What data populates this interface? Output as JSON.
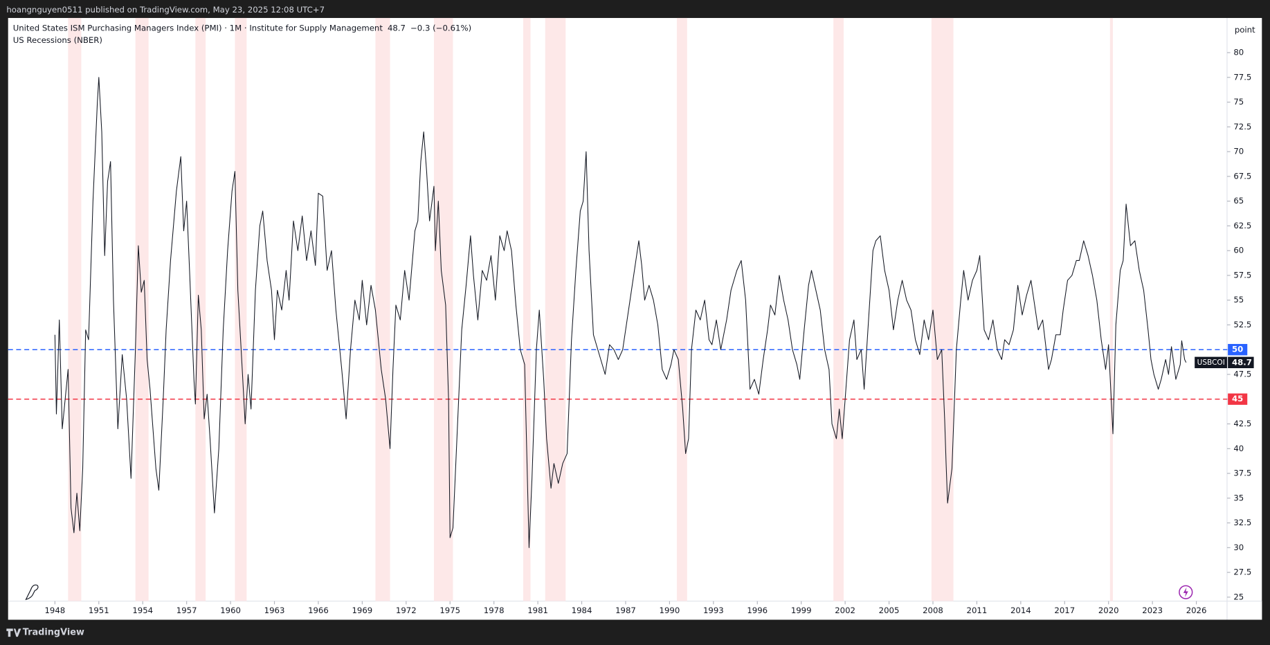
{
  "header": "hoangnguyen0511 published on TradingView.com, May 23, 2025 12:08 UTC+7",
  "footer": "TradingView",
  "chart_data": {
    "type": "line",
    "title": "United States ISM Purchasing Managers Index (PMI) · 1M · Institute for Supply Management",
    "last": {
      "value": 48.7,
      "change": "−0.3 (−0.61%)",
      "symbol": "USBCOI"
    },
    "recessions_label": "US Recessions (NBER)",
    "recessions": [
      [
        1948.9,
        1949.8
      ],
      [
        1953.5,
        1954.4
      ],
      [
        1957.6,
        1958.3
      ],
      [
        1960.3,
        1961.1
      ],
      [
        1969.9,
        1970.9
      ],
      [
        1973.9,
        1975.2
      ],
      [
        1980.0,
        1980.5
      ],
      [
        1981.5,
        1982.9
      ],
      [
        1990.5,
        1991.2
      ],
      [
        2001.2,
        2001.9
      ],
      [
        2007.9,
        2009.4
      ],
      [
        2020.1,
        2020.3
      ]
    ],
    "recession_color": "#fde8e8",
    "axis_unit": "point",
    "hlines": [
      {
        "value": 50,
        "color": "#2962ff"
      },
      {
        "value": 45,
        "color": "#f23645"
      }
    ],
    "xlim": [
      1944.8,
      2028.1
    ],
    "ylim": [
      24.6,
      83.5
    ],
    "xticks": [
      1948,
      1951,
      1954,
      1957,
      1960,
      1963,
      1966,
      1969,
      1972,
      1975,
      1978,
      1981,
      1984,
      1987,
      1990,
      1993,
      1996,
      1999,
      2002,
      2005,
      2008,
      2011,
      2014,
      2017,
      2020,
      2023,
      2026
    ],
    "yticks": [
      25,
      27.5,
      30,
      32.5,
      35,
      37.5,
      40,
      42.5,
      45,
      47.5,
      50,
      52.5,
      55,
      57.5,
      60,
      62.5,
      65,
      67.5,
      70,
      72.5,
      75,
      77.5,
      80
    ],
    "series": [
      {
        "name": "USBCOI",
        "color": "#131722",
        "x": [
          1948.0,
          1948.1,
          1948.3,
          1948.5,
          1948.9,
          1949.1,
          1949.3,
          1949.5,
          1949.7,
          1949.9,
          1950.1,
          1950.3,
          1950.6,
          1950.9,
          1951.0,
          1951.2,
          1951.4,
          1951.6,
          1951.8,
          1952.0,
          1952.3,
          1952.6,
          1952.9,
          1953.2,
          1953.5,
          1953.7,
          1953.9,
          1954.1,
          1954.3,
          1954.5,
          1954.9,
          1955.1,
          1955.4,
          1955.6,
          1955.9,
          1956.3,
          1956.6,
          1956.8,
          1957.0,
          1957.2,
          1957.5,
          1957.6,
          1957.8,
          1958.0,
          1958.2,
          1958.4,
          1958.6,
          1958.9,
          1959.2,
          1959.5,
          1959.8,
          1960.1,
          1960.3,
          1960.5,
          1960.8,
          1961.0,
          1961.2,
          1961.4,
          1961.7,
          1962.0,
          1962.2,
          1962.5,
          1962.8,
          1963.0,
          1963.2,
          1963.5,
          1963.8,
          1964.0,
          1964.3,
          1964.6,
          1964.9,
          1965.2,
          1965.5,
          1965.8,
          1966.0,
          1966.3,
          1966.6,
          1966.9,
          1967.2,
          1967.6,
          1967.9,
          1968.2,
          1968.5,
          1968.8,
          1969.0,
          1969.3,
          1969.6,
          1969.9,
          1970.3,
          1970.6,
          1970.9,
          1971.1,
          1971.3,
          1971.6,
          1971.9,
          1972.2,
          1972.6,
          1972.8,
          1973.0,
          1973.2,
          1973.4,
          1973.6,
          1973.9,
          1974.0,
          1974.2,
          1974.4,
          1974.7,
          1974.9,
          1975.0,
          1975.2,
          1975.5,
          1975.8,
          1976.1,
          1976.4,
          1976.6,
          1976.9,
          1977.2,
          1977.5,
          1977.8,
          1978.1,
          1978.4,
          1978.7,
          1978.9,
          1979.2,
          1979.5,
          1979.8,
          1980.1,
          1980.4,
          1980.6,
          1980.9,
          1981.1,
          1981.4,
          1981.6,
          1981.9,
          1982.1,
          1982.4,
          1982.7,
          1983.0,
          1983.3,
          1983.6,
          1983.9,
          1984.1,
          1984.3,
          1984.5,
          1984.8,
          1985.1,
          1985.3,
          1985.6,
          1985.9,
          1986.2,
          1986.5,
          1986.8,
          1987.1,
          1987.4,
          1987.7,
          1987.9,
          1988.1,
          1988.3,
          1988.6,
          1988.9,
          1989.2,
          1989.5,
          1989.8,
          1990.1,
          1990.3,
          1990.6,
          1990.9,
          1991.1,
          1991.3,
          1991.5,
          1991.8,
          1992.1,
          1992.4,
          1992.7,
          1992.9,
          1993.2,
          1993.5,
          1993.9,
          1994.2,
          1994.6,
          1994.9,
          1995.2,
          1995.5,
          1995.8,
          1996.1,
          1996.4,
          1996.7,
          1996.9,
          1997.2,
          1997.5,
          1997.8,
          1998.1,
          1998.4,
          1998.7,
          1998.9,
          1999.2,
          1999.5,
          1999.7,
          2000.0,
          2000.3,
          2000.6,
          2000.9,
          2001.1,
          2001.4,
          2001.6,
          2001.8,
          2002.0,
          2002.3,
          2002.6,
          2002.8,
          2003.1,
          2003.3,
          2003.6,
          2003.9,
          2004.1,
          2004.4,
          2004.7,
          2005.0,
          2005.3,
          2005.6,
          2005.9,
          2006.2,
          2006.5,
          2006.8,
          2007.1,
          2007.4,
          2007.7,
          2008.0,
          2008.3,
          2008.6,
          2008.8,
          2008.9,
          2009.0,
          2009.3,
          2009.6,
          2009.9,
          2010.1,
          2010.4,
          2010.7,
          2011.0,
          2011.2,
          2011.5,
          2011.8,
          2012.1,
          2012.4,
          2012.7,
          2012.9,
          2013.2,
          2013.5,
          2013.8,
          2014.1,
          2014.4,
          2014.7,
          2014.9,
          2015.2,
          2015.5,
          2015.9,
          2016.1,
          2016.4,
          2016.7,
          2016.9,
          2017.2,
          2017.5,
          2017.8,
          2018.0,
          2018.3,
          2018.6,
          2018.9,
          2019.2,
          2019.5,
          2019.8,
          2020.0,
          2020.3,
          2020.5,
          2020.8,
          2021.0,
          2021.2,
          2021.5,
          2021.8,
          2022.1,
          2022.4,
          2022.7,
          2022.9,
          2023.1,
          2023.4,
          2023.6,
          2023.9,
          2024.1,
          2024.3,
          2024.6,
          2024.9,
          2025.0,
          2025.2,
          2025.3
        ],
        "values": [
          51.5,
          43.5,
          53,
          42,
          48,
          34,
          31.5,
          35.5,
          31.7,
          38,
          52,
          51,
          65,
          75,
          77.5,
          72,
          59.5,
          67,
          69,
          55,
          42,
          49.5,
          45,
          37,
          50,
          60.5,
          55.8,
          57,
          49,
          46,
          38,
          35.8,
          45,
          52,
          59,
          66,
          69.5,
          62,
          65,
          58,
          47,
          44.5,
          55.5,
          52,
          43,
          45.5,
          41,
          33.5,
          40,
          52,
          60,
          66,
          68,
          56,
          48,
          42.5,
          47.5,
          44,
          56,
          62.5,
          64,
          59,
          56,
          51,
          56,
          54,
          58,
          55,
          63,
          60,
          63.5,
          59,
          62,
          58.5,
          65.8,
          65.5,
          58,
          60,
          54,
          48,
          43,
          50,
          55,
          53,
          57,
          52.5,
          56.5,
          54,
          48,
          45,
          40,
          48,
          54.5,
          53,
          58,
          55,
          62,
          63,
          69,
          72,
          68,
          63,
          66.5,
          60,
          65,
          58,
          54.5,
          45,
          31,
          32,
          42,
          52,
          56.5,
          61.5,
          57.5,
          53,
          58,
          57,
          59.5,
          55,
          61.5,
          60,
          62,
          60,
          54.5,
          50,
          48.5,
          30,
          37,
          50,
          54,
          47,
          41,
          36,
          38.5,
          36.5,
          38.5,
          39.5,
          51,
          58,
          64,
          65,
          70,
          60,
          51.5,
          50,
          49,
          47.5,
          50.5,
          50,
          49,
          50,
          53,
          56,
          59,
          61,
          58.5,
          55,
          56.5,
          55,
          52.5,
          48,
          47,
          48.5,
          50,
          49,
          44,
          39.5,
          41,
          50,
          54,
          53,
          55,
          51,
          50.5,
          53,
          50,
          53,
          56,
          58,
          59,
          55,
          46,
          47,
          45.5,
          49,
          52,
          54.5,
          53.5,
          57.5,
          55,
          53,
          50,
          48.5,
          47,
          52,
          56.5,
          58,
          56,
          54,
          50,
          48,
          42.5,
          41,
          44,
          41,
          45,
          51,
          53,
          49,
          50,
          46,
          53,
          60,
          61,
          61.5,
          58,
          56,
          52,
          55,
          57,
          55,
          54,
          51,
          49.5,
          53,
          51,
          54,
          49,
          50,
          43,
          38.5,
          34.5,
          38,
          50,
          55,
          58,
          55,
          57,
          58,
          59.5,
          52,
          51,
          53,
          50,
          49,
          51,
          50.5,
          52,
          56.5,
          53.5,
          55.5,
          57,
          55,
          52,
          53,
          48,
          49,
          51.5,
          51.5,
          54,
          57,
          57.5,
          59,
          59,
          61,
          59.5,
          57.5,
          55,
          51,
          48,
          50.5,
          41.5,
          52.5,
          58,
          59,
          64.7,
          60.5,
          61,
          58,
          56,
          52,
          49,
          47.5,
          46,
          47,
          49,
          47.5,
          50.3,
          47,
          48.5,
          50.9,
          49,
          48.7
        ]
      }
    ]
  }
}
